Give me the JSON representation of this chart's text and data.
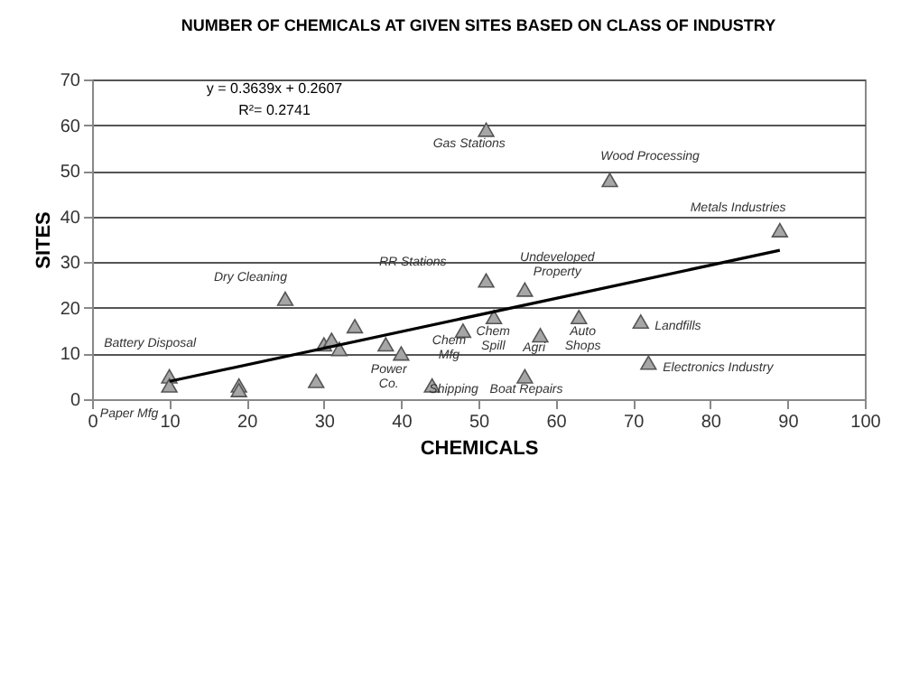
{
  "chart_data": {
    "type": "scatter",
    "title": "NUMBER OF CHEMICALS AT GIVEN SITES BASED ON CLASS OF INDUSTRY",
    "xlabel": "CHEMICALS",
    "ylabel": "SITES",
    "xlim": [
      0,
      100
    ],
    "xticks": [
      0,
      10,
      20,
      30,
      40,
      50,
      60,
      70,
      80,
      90,
      100
    ],
    "ylim": [
      0,
      70
    ],
    "yticks": [
      0,
      10,
      20,
      30,
      40,
      50,
      60,
      70
    ],
    "grid": "y",
    "series": [
      {
        "type": "scatter",
        "marker": "triangle",
        "color": "#a6a6a6",
        "x": [
          10,
          10,
          19,
          19,
          25,
          29,
          30,
          31,
          32,
          34,
          38,
          40,
          44,
          48,
          51,
          51,
          52,
          56,
          56,
          58,
          63,
          67,
          71,
          72,
          89
        ],
        "values": [
          5,
          3,
          3,
          2,
          22,
          4,
          12,
          13,
          11,
          16,
          12,
          10,
          3,
          15,
          59,
          26,
          18,
          24,
          5,
          14,
          18,
          48,
          17,
          8,
          37
        ]
      },
      {
        "type": "line",
        "marker": "none",
        "color": "#000000",
        "x": [
          10,
          89
        ],
        "values": [
          3.9,
          32.6
        ]
      }
    ],
    "annotations": [
      "y = 0.3639x + 0.2607",
      "R²= 0.2741",
      "Gas Stations",
      "Wood Processing",
      "Metals Industries",
      "Dry Cleaning",
      "RR Stations",
      "Undeveloped\nProperty",
      "Battery Disposal",
      "Paper Mfg",
      "Chem\nMfg",
      "Power\nCo.",
      "Shipping",
      "Boat Repairs",
      "Chem\nSpill",
      "Agri",
      "Auto\nShops",
      "Landfills",
      "Electronics Industry"
    ]
  }
}
